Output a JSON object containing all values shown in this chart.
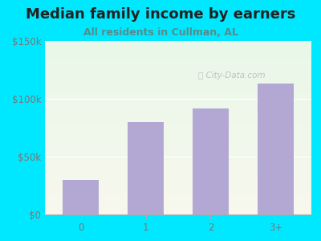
{
  "title": "Median family income by earners",
  "subtitle": "All residents in Cullman, AL",
  "categories": [
    "0",
    "1",
    "2",
    "3+"
  ],
  "values": [
    30000,
    80000,
    92000,
    113000
  ],
  "bar_color": "#b3a8d4",
  "background_outer": "#00e8ff",
  "title_color": "#222222",
  "subtitle_color": "#5a8a8a",
  "tick_label_color": "#777777",
  "ylim": [
    0,
    150000
  ],
  "yticks": [
    0,
    50000,
    100000,
    150000
  ],
  "ytick_labels": [
    "$0",
    "$50k",
    "$100k",
    "$150k"
  ],
  "watermark": "City-Data.com",
  "watermark_color": "#bbbbbb",
  "title_fontsize": 13,
  "subtitle_fontsize": 9,
  "tick_fontsize": 8.5
}
